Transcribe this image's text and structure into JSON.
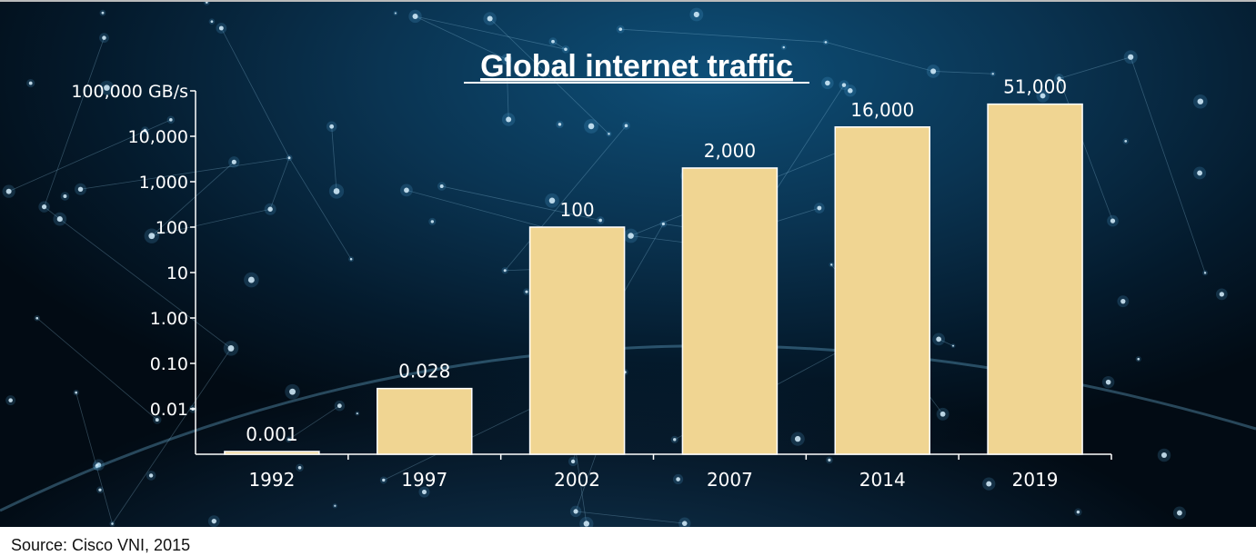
{
  "chart_data": {
    "type": "bar",
    "title": "Global internet traffic",
    "unit_label": "GB/s",
    "y_scale": "log",
    "ylim": [
      0.001,
      100000
    ],
    "y_ticks": [
      {
        "value": 0.01,
        "label": "0.01"
      },
      {
        "value": 0.1,
        "label": "0.10"
      },
      {
        "value": 1,
        "label": "1.00"
      },
      {
        "value": 10,
        "label": "10"
      },
      {
        "value": 100,
        "label": "100"
      },
      {
        "value": 1000,
        "label": "1,000"
      },
      {
        "value": 10000,
        "label": "10,000"
      },
      {
        "value": 100000,
        "label": "100,000 GB/s"
      }
    ],
    "categories": [
      "1992",
      "1997",
      "2002",
      "2007",
      "2014",
      "2019"
    ],
    "values": [
      0.001,
      0.028,
      100,
      2000,
      16000,
      51000
    ],
    "value_labels": [
      "0.001",
      "0.028",
      "100",
      "2,000",
      "16,000",
      "51,000"
    ],
    "grid": false,
    "legend": "none",
    "colors": {
      "bar": "#f0d592",
      "bar_stroke": "#ffffff",
      "text": "#ffffff",
      "axis": "#ffffff"
    }
  },
  "source": "Source: Cisco VNI, 2015"
}
